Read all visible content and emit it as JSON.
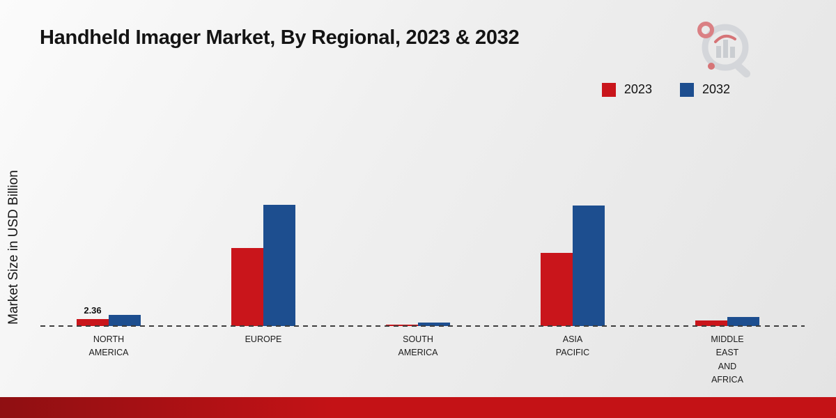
{
  "title": "Handheld Imager Market, By Regional, 2023 & 2032",
  "ylabel": "Market Size in USD Billion",
  "legend": [
    {
      "label": "2023",
      "color": "#c9151b"
    },
    {
      "label": "2032",
      "color": "#1d4e8f"
    }
  ],
  "colors": {
    "series_2023": "#c9151b",
    "series_2032": "#1d4e8f",
    "footer_bar": "#c41216"
  },
  "chart_data": {
    "type": "bar",
    "categories": [
      "NORTH AMERICA",
      "EUROPE",
      "SOUTH AMERICA",
      "ASIA PACIFIC",
      "MIDDLE EAST AND AFRICA"
    ],
    "series": [
      {
        "name": "2023",
        "color": "#c9151b",
        "values": [
          2.36,
          26.0,
          0.4,
          24.5,
          1.9
        ]
      },
      {
        "name": "2032",
        "color": "#1d4e8f",
        "values": [
          3.7,
          40.5,
          1.1,
          40.3,
          3.1
        ]
      }
    ],
    "annotations": [
      {
        "category": "NORTH AMERICA",
        "series": "2023",
        "text": "2.36"
      }
    ],
    "title": "Handheld Imager Market, By Regional, 2023 & 2032",
    "xlabel": "",
    "ylabel": "Market Size in USD Billion",
    "ylim": [
      0,
      45
    ],
    "grid": false,
    "baseline_style": "dashed",
    "legend_position": "top-right"
  }
}
